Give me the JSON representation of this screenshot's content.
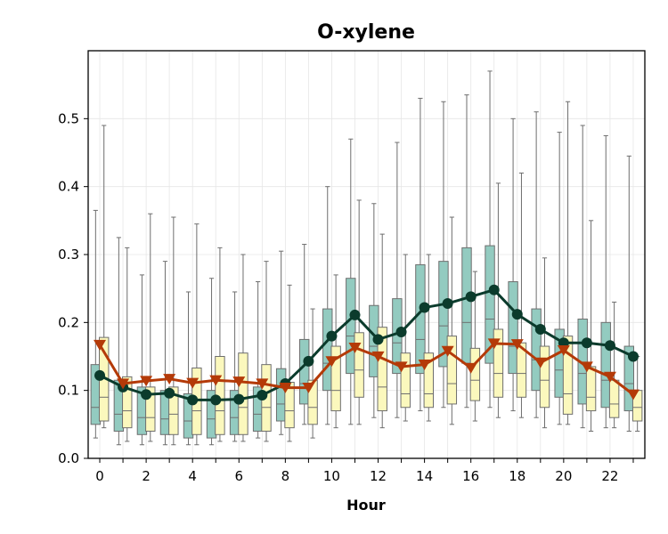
{
  "chart_data": {
    "type": "boxplot",
    "title": "O-xylene",
    "xlabel": "Hour",
    "ylabel": "",
    "ylim": [
      0,
      0.6
    ],
    "xlim": [
      -0.5,
      23.5
    ],
    "grid": true,
    "legend": "none",
    "x_ticks": [
      "0",
      "2",
      "4",
      "6",
      "8",
      "10",
      "12",
      "14",
      "16",
      "18",
      "20",
      "22"
    ],
    "y_ticks": [
      "0.0",
      "0.1",
      "0.2",
      "0.3",
      "0.4",
      "0.5"
    ],
    "hours": [
      0,
      1,
      2,
      3,
      4,
      5,
      6,
      7,
      8,
      9,
      10,
      11,
      12,
      13,
      14,
      15,
      16,
      17,
      18,
      19,
      20,
      21,
      22,
      23
    ],
    "colors": {
      "box_series_1": "#93cbc0",
      "box_series_2": "#fbf8bd",
      "box_edge": "#6e6e6e",
      "line_series_1": "#0b3b2c",
      "line_series_2": "#b43a08"
    },
    "box_series": [
      {
        "boxes": [
          {
            "whislo": 0.03,
            "q1": 0.05,
            "med": 0.075,
            "q3": 0.138,
            "whishi": 0.365
          },
          {
            "whislo": 0.02,
            "q1": 0.04,
            "med": 0.065,
            "q3": 0.115,
            "whishi": 0.325
          },
          {
            "whislo": 0.02,
            "q1": 0.035,
            "med": 0.06,
            "q3": 0.105,
            "whishi": 0.27
          },
          {
            "whislo": 0.02,
            "q1": 0.035,
            "med": 0.058,
            "q3": 0.1,
            "whishi": 0.29
          },
          {
            "whislo": 0.02,
            "q1": 0.03,
            "med": 0.055,
            "q3": 0.095,
            "whishi": 0.245
          },
          {
            "whislo": 0.02,
            "q1": 0.03,
            "med": 0.058,
            "q3": 0.1,
            "whishi": 0.265
          },
          {
            "whislo": 0.025,
            "q1": 0.035,
            "med": 0.06,
            "q3": 0.1,
            "whishi": 0.245
          },
          {
            "whislo": 0.03,
            "q1": 0.04,
            "med": 0.065,
            "q3": 0.105,
            "whishi": 0.26
          },
          {
            "whislo": 0.035,
            "q1": 0.055,
            "med": 0.08,
            "q3": 0.132,
            "whishi": 0.305
          },
          {
            "whislo": 0.05,
            "q1": 0.08,
            "med": 0.11,
            "q3": 0.175,
            "whishi": 0.315
          },
          {
            "whislo": 0.05,
            "q1": 0.1,
            "med": 0.14,
            "q3": 0.22,
            "whishi": 0.4
          },
          {
            "whislo": 0.05,
            "q1": 0.125,
            "med": 0.18,
            "q3": 0.265,
            "whishi": 0.47
          },
          {
            "whislo": 0.06,
            "q1": 0.12,
            "med": 0.165,
            "q3": 0.225,
            "whishi": 0.375
          },
          {
            "whislo": 0.06,
            "q1": 0.125,
            "med": 0.17,
            "q3": 0.235,
            "whishi": 0.465
          },
          {
            "whislo": 0.07,
            "q1": 0.125,
            "med": 0.175,
            "q3": 0.285,
            "whishi": 0.53
          },
          {
            "whislo": 0.075,
            "q1": 0.135,
            "med": 0.195,
            "q3": 0.29,
            "whishi": 0.525
          },
          {
            "whislo": 0.075,
            "q1": 0.14,
            "med": 0.2,
            "q3": 0.31,
            "whishi": 0.535
          },
          {
            "whislo": 0.075,
            "q1": 0.14,
            "med": 0.205,
            "q3": 0.313,
            "whishi": 0.57
          },
          {
            "whislo": 0.07,
            "q1": 0.125,
            "med": 0.165,
            "q3": 0.26,
            "whishi": 0.5
          },
          {
            "whislo": 0.06,
            "q1": 0.1,
            "med": 0.145,
            "q3": 0.22,
            "whishi": 0.51
          },
          {
            "whislo": 0.05,
            "q1": 0.09,
            "med": 0.13,
            "q3": 0.19,
            "whishi": 0.48
          },
          {
            "whislo": 0.045,
            "q1": 0.08,
            "med": 0.125,
            "q3": 0.205,
            "whishi": 0.49
          },
          {
            "whislo": 0.045,
            "q1": 0.075,
            "med": 0.115,
            "q3": 0.2,
            "whishi": 0.475
          },
          {
            "whislo": 0.04,
            "q1": 0.07,
            "med": 0.11,
            "q3": 0.165,
            "whishi": 0.445
          }
        ]
      },
      {
        "boxes": [
          {
            "whislo": 0.045,
            "q1": 0.055,
            "med": 0.09,
            "q3": 0.178,
            "whishi": 0.49
          },
          {
            "whislo": 0.025,
            "q1": 0.045,
            "med": 0.07,
            "q3": 0.12,
            "whishi": 0.31
          },
          {
            "whislo": 0.025,
            "q1": 0.04,
            "med": 0.06,
            "q3": 0.105,
            "whishi": 0.36
          },
          {
            "whislo": 0.02,
            "q1": 0.035,
            "med": 0.065,
            "q3": 0.105,
            "whishi": 0.355
          },
          {
            "whislo": 0.02,
            "q1": 0.035,
            "med": 0.07,
            "q3": 0.133,
            "whishi": 0.345
          },
          {
            "whislo": 0.025,
            "q1": 0.035,
            "med": 0.07,
            "q3": 0.15,
            "whishi": 0.31
          },
          {
            "whislo": 0.025,
            "q1": 0.035,
            "med": 0.075,
            "q3": 0.155,
            "whishi": 0.3
          },
          {
            "whislo": 0.025,
            "q1": 0.04,
            "med": 0.075,
            "q3": 0.138,
            "whishi": 0.29
          },
          {
            "whislo": 0.025,
            "q1": 0.045,
            "med": 0.07,
            "q3": 0.112,
            "whishi": 0.255
          },
          {
            "whislo": 0.03,
            "q1": 0.05,
            "med": 0.075,
            "q3": 0.115,
            "whishi": 0.22
          },
          {
            "whislo": 0.045,
            "q1": 0.07,
            "med": 0.1,
            "q3": 0.165,
            "whishi": 0.27
          },
          {
            "whislo": 0.05,
            "q1": 0.09,
            "med": 0.13,
            "q3": 0.185,
            "whishi": 0.38
          },
          {
            "whislo": 0.045,
            "q1": 0.07,
            "med": 0.105,
            "q3": 0.193,
            "whishi": 0.33
          },
          {
            "whislo": 0.055,
            "q1": 0.075,
            "med": 0.095,
            "q3": 0.155,
            "whishi": 0.3
          },
          {
            "whislo": 0.055,
            "q1": 0.075,
            "med": 0.095,
            "q3": 0.155,
            "whishi": 0.3
          },
          {
            "whislo": 0.05,
            "q1": 0.08,
            "med": 0.11,
            "q3": 0.18,
            "whishi": 0.355
          },
          {
            "whislo": 0.055,
            "q1": 0.085,
            "med": 0.115,
            "q3": 0.162,
            "whishi": 0.275
          },
          {
            "whislo": 0.06,
            "q1": 0.09,
            "med": 0.125,
            "q3": 0.19,
            "whishi": 0.405
          },
          {
            "whislo": 0.06,
            "q1": 0.09,
            "med": 0.125,
            "q3": 0.17,
            "whishi": 0.42
          },
          {
            "whislo": 0.045,
            "q1": 0.075,
            "med": 0.115,
            "q3": 0.165,
            "whishi": 0.295
          },
          {
            "whislo": 0.05,
            "q1": 0.065,
            "med": 0.095,
            "q3": 0.18,
            "whishi": 0.525
          },
          {
            "whislo": 0.04,
            "q1": 0.07,
            "med": 0.09,
            "q3": 0.135,
            "whishi": 0.35
          },
          {
            "whislo": 0.045,
            "q1": 0.06,
            "med": 0.08,
            "q3": 0.115,
            "whishi": 0.23
          },
          {
            "whislo": 0.04,
            "q1": 0.055,
            "med": 0.075,
            "q3": 0.1,
            "whishi": 0.15
          }
        ]
      }
    ],
    "line_series": [
      {
        "marker": "circle",
        "values": [
          0.122,
          0.105,
          0.094,
          0.096,
          0.086,
          0.086,
          0.087,
          0.093,
          0.11,
          0.143,
          0.18,
          0.211,
          0.175,
          0.186,
          0.222,
          0.228,
          0.238,
          0.248,
          0.212,
          0.19,
          0.17,
          0.17,
          0.166,
          0.15
        ]
      },
      {
        "marker": "triangle-down",
        "values": [
          0.167,
          0.11,
          0.114,
          0.117,
          0.111,
          0.115,
          0.113,
          0.11,
          0.104,
          0.104,
          0.143,
          0.163,
          0.15,
          0.135,
          0.138,
          0.158,
          0.133,
          0.169,
          0.168,
          0.141,
          0.159,
          0.135,
          0.12,
          0.094
        ]
      }
    ]
  }
}
